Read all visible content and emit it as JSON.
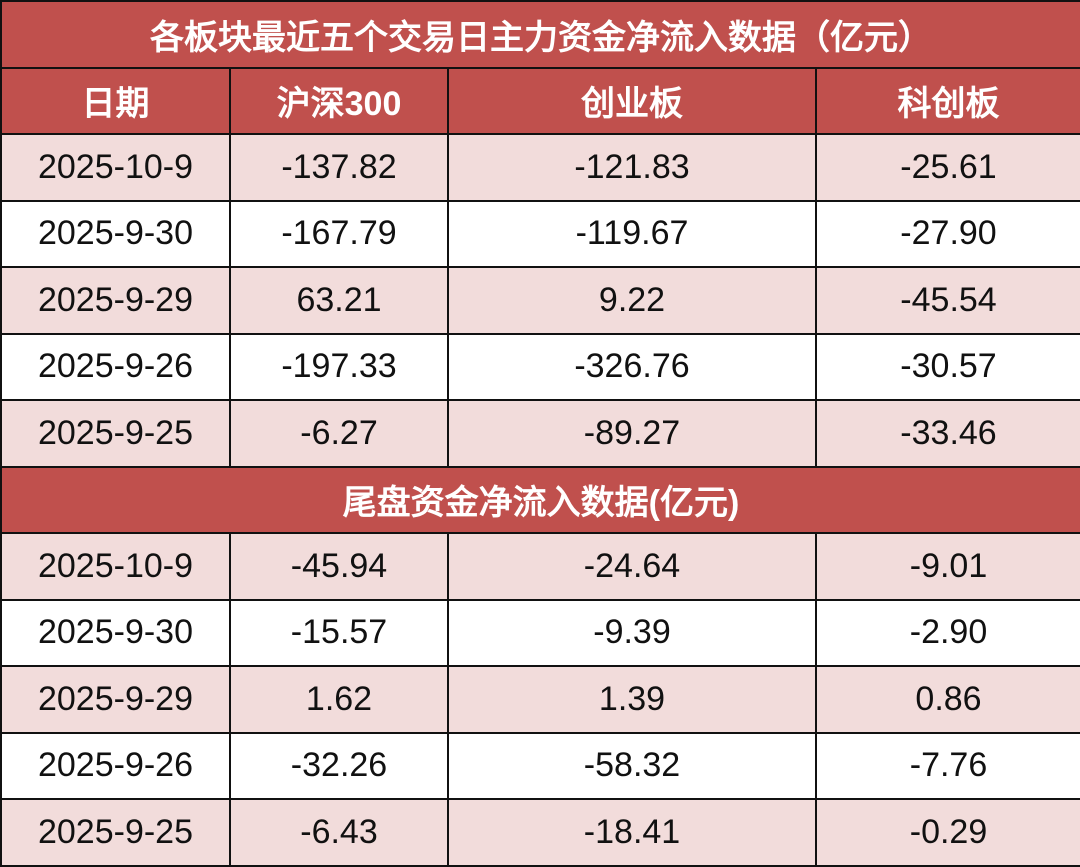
{
  "colors": {
    "header_bg": "#c0504d",
    "odd_row_bg": "#f2dcdb",
    "even_row_bg": "#ffffff"
  },
  "main_title": "各板块最近五个交易日主力资金净流入数据（亿元）",
  "columns": [
    "日期",
    "沪深300",
    "创业板",
    "科创板"
  ],
  "main_rows": [
    [
      "2025-10-9",
      "-137.82",
      "-121.83",
      "-25.61"
    ],
    [
      "2025-9-30",
      "-167.79",
      "-119.67",
      "-27.90"
    ],
    [
      "2025-9-29",
      "63.21",
      "9.22",
      "-45.54"
    ],
    [
      "2025-9-26",
      "-197.33",
      "-326.76",
      "-30.57"
    ],
    [
      "2025-9-25",
      "-6.27",
      "-89.27",
      "-33.46"
    ]
  ],
  "tail_title": "尾盘资金净流入数据(亿元)",
  "tail_rows": [
    [
      "2025-10-9",
      "-45.94",
      "-24.64",
      "-9.01"
    ],
    [
      "2025-9-30",
      "-15.57",
      "-9.39",
      "-2.90"
    ],
    [
      "2025-9-29",
      "1.62",
      "1.39",
      "0.86"
    ],
    [
      "2025-9-26",
      "-32.26",
      "-58.32",
      "-7.76"
    ],
    [
      "2025-9-25",
      "-6.43",
      "-18.41",
      "-0.29"
    ]
  ]
}
